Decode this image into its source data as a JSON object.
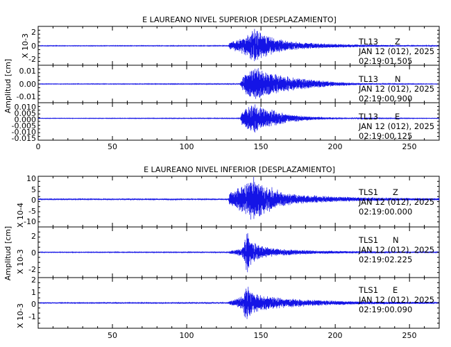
{
  "chart_data": [
    {
      "type": "line",
      "title": "E LAUREANO NIVEL SUPERIOR [DESPLAZAMIENTO]",
      "ylabel": "Amplitud [cm]",
      "xlabel": "",
      "xlim": [
        0,
        270
      ],
      "x_ticks": [
        "0",
        "50",
        "100",
        "150",
        "200",
        "250"
      ],
      "grid": false,
      "channels": [
        {
          "station": "TL13",
          "component": "Z",
          "date": "JAN 12 (012), 2025",
          "time": "02:19:01.505",
          "scale": "X 10-3",
          "ylim": [
            -3,
            3
          ],
          "y_ticks": [
            "2",
            "0",
            "-2"
          ],
          "envelope": [
            [
              0,
              0.05
            ],
            [
              128,
              0.06
            ],
            [
              129,
              0.6
            ],
            [
              132,
              0.8
            ],
            [
              135,
              1.0
            ],
            [
              138,
              1.4
            ],
            [
              141,
              1.8
            ],
            [
              144,
              2.4
            ],
            [
              146,
              2.8
            ],
            [
              148,
              2.6
            ],
            [
              151,
              2.0
            ],
            [
              155,
              1.5
            ],
            [
              160,
              1.2
            ],
            [
              165,
              0.9
            ],
            [
              170,
              0.7
            ],
            [
              180,
              0.5
            ],
            [
              190,
              0.4
            ],
            [
              200,
              0.3
            ],
            [
              220,
              0.2
            ],
            [
              250,
              0.1
            ],
            [
              270,
              0.08
            ]
          ]
        },
        {
          "station": "TL13",
          "component": "N",
          "date": "JAN 12 (012), 2025",
          "time": "02:19:00.900",
          "scale": "",
          "ylim": [
            -0.013,
            0.013
          ],
          "y_ticks": [
            "0.01",
            "0.00",
            "-0.01"
          ],
          "envelope": [
            [
              0,
              0.0002
            ],
            [
              136,
              0.0003
            ],
            [
              137,
              0.004
            ],
            [
              140,
              0.008
            ],
            [
              143,
              0.01
            ],
            [
              146,
              0.0125
            ],
            [
              149,
              0.011
            ],
            [
              153,
              0.009
            ],
            [
              158,
              0.0075
            ],
            [
              165,
              0.006
            ],
            [
              172,
              0.0045
            ],
            [
              180,
              0.0035
            ],
            [
              190,
              0.0025
            ],
            [
              200,
              0.0017
            ],
            [
              210,
              0.001
            ],
            [
              220,
              0.0006
            ],
            [
              240,
              0.0003
            ],
            [
              270,
              0.0002
            ]
          ]
        },
        {
          "station": "TL13",
          "component": "E",
          "date": "JAN 12 (012), 2025",
          "time": "02:19:00.125",
          "scale": "",
          "ylim": [
            -0.0175,
            0.0125
          ],
          "y_ticks": [
            "0.010",
            "0.005",
            "0.000",
            "-0.005",
            "-0.010",
            "-0.015"
          ],
          "envelope": [
            [
              0,
              0.0002
            ],
            [
              136,
              0.0003
            ],
            [
              137,
              0.005
            ],
            [
              140,
              0.009
            ],
            [
              143,
              0.0115
            ],
            [
              146,
              0.012
            ],
            [
              149,
              0.0105
            ],
            [
              152,
              0.009
            ],
            [
              156,
              0.0075
            ],
            [
              160,
              0.006
            ],
            [
              165,
              0.0045
            ],
            [
              170,
              0.0033
            ],
            [
              178,
              0.0022
            ],
            [
              185,
              0.0015
            ],
            [
              195,
              0.0009
            ],
            [
              210,
              0.0005
            ],
            [
              240,
              0.0003
            ],
            [
              270,
              0.0002
            ]
          ]
        }
      ]
    },
    {
      "type": "line",
      "title": "E LAUREANO NIVEL INFERIOR [DESPLAZAMIENTO]",
      "ylabel": "Amplitud [cm]",
      "xlabel": "",
      "xlim": [
        0,
        270
      ],
      "x_ticks": [
        "50",
        "100",
        "150",
        "200",
        "250"
      ],
      "grid": false,
      "channels": [
        {
          "station": "TLS1",
          "component": "Z",
          "date": "JAN 12 (012), 2025",
          "time": "02:19:00.000",
          "scale": "X 10-4",
          "ylim": [
            -12,
            10
          ],
          "y_ticks": [
            "10",
            "5",
            "0",
            "-5",
            "-10"
          ],
          "envelope": [
            [
              0,
              0.2
            ],
            [
              128,
              0.3
            ],
            [
              129,
              3
            ],
            [
              132,
              4
            ],
            [
              135,
              5
            ],
            [
              138,
              6
            ],
            [
              141,
              8
            ],
            [
              143,
              9.5
            ],
            [
              145,
              10.5
            ],
            [
              148,
              9
            ],
            [
              151,
              7.5
            ],
            [
              155,
              6
            ],
            [
              160,
              4.5
            ],
            [
              165,
              3.5
            ],
            [
              170,
              2.6
            ],
            [
              180,
              2
            ],
            [
              190,
              1.6
            ],
            [
              200,
              1.2
            ],
            [
              220,
              0.9
            ],
            [
              250,
              0.6
            ],
            [
              270,
              0.5
            ]
          ]
        },
        {
          "station": "TLS1",
          "component": "N",
          "date": "JAN 12 (012), 2025",
          "time": "02:19:02.225",
          "scale": "X 10-3",
          "ylim": [
            -3,
            3
          ],
          "y_ticks": [
            "2",
            "0",
            "-2"
          ],
          "envelope": [
            [
              0,
              0.04
            ],
            [
              128,
              0.05
            ],
            [
              129,
              0.2
            ],
            [
              133,
              0.35
            ],
            [
              137,
              0.5
            ],
            [
              139,
              1.5
            ],
            [
              140,
              2.5
            ],
            [
              141,
              2.8
            ],
            [
              142,
              2.0
            ],
            [
              144,
              1.4
            ],
            [
              148,
              0.9
            ],
            [
              152,
              0.7
            ],
            [
              158,
              0.5
            ],
            [
              165,
              0.4
            ],
            [
              175,
              0.3
            ],
            [
              190,
              0.2
            ],
            [
              210,
              0.14
            ],
            [
              240,
              0.1
            ],
            [
              270,
              0.08
            ]
          ]
        },
        {
          "station": "TLS1",
          "component": "E",
          "date": "JAN 12 (012), 2025",
          "time": "02:19:00.090",
          "scale": "X 10-3",
          "ylim": [
            -2,
            2
          ],
          "y_ticks": [
            "2",
            "1",
            "0",
            "-1"
          ],
          "envelope": [
            [
              0,
              0.03
            ],
            [
              128,
              0.04
            ],
            [
              129,
              0.2
            ],
            [
              134,
              0.35
            ],
            [
              138,
              0.6
            ],
            [
              139,
              1.2
            ],
            [
              140,
              1.7
            ],
            [
              141,
              1.5
            ],
            [
              143,
              1.1
            ],
            [
              146,
              0.8
            ],
            [
              150,
              0.65
            ],
            [
              155,
              0.55
            ],
            [
              160,
              0.45
            ],
            [
              170,
              0.35
            ],
            [
              180,
              0.28
            ],
            [
              195,
              0.2
            ],
            [
              215,
              0.13
            ],
            [
              245,
              0.09
            ],
            [
              270,
              0.07
            ]
          ]
        }
      ]
    }
  ]
}
